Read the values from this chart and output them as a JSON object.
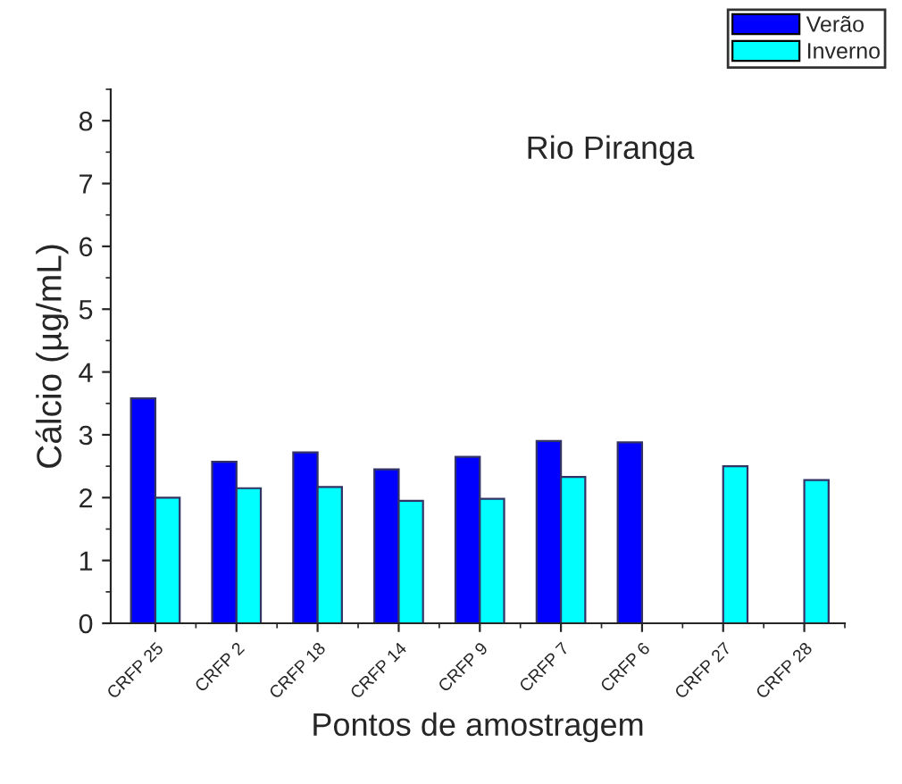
{
  "chart_data": {
    "type": "bar",
    "title": "Rio Piranga",
    "xlabel": "Pontos de amostragem",
    "ylabel": "Cálcio (µg/mL)",
    "categories": [
      "CRFP 25",
      "CRFP 2",
      "CRFP 18",
      "CRFP 14",
      "CRFP 9",
      "CRFP 7",
      "CRFP 6",
      "CRFP 27",
      "CRFP 28"
    ],
    "series": [
      {
        "name": "Verão",
        "color": "#0000ff",
        "values": [
          3.58,
          2.57,
          2.72,
          2.45,
          2.65,
          2.9,
          2.88,
          null,
          null
        ]
      },
      {
        "name": "Inverno",
        "color": "#00ffff",
        "values": [
          2.0,
          2.15,
          2.17,
          1.95,
          1.98,
          2.33,
          null,
          2.5,
          2.28
        ]
      }
    ],
    "ylim": [
      0,
      8.5
    ],
    "yticks": [
      0,
      1,
      2,
      3,
      4,
      5,
      6,
      7,
      8
    ],
    "grid": false,
    "legend": "top right"
  }
}
